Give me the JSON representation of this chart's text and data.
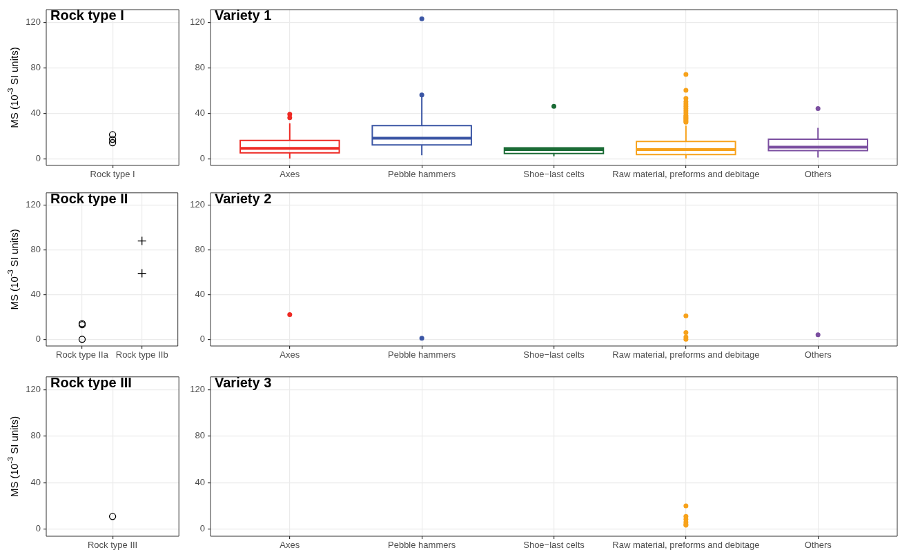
{
  "chart_data": [
    {
      "type": "scatter",
      "title": "Rock type I",
      "ylabel": "MS (10$^{-3}$ SI units)",
      "categories": [
        "Rock type I"
      ],
      "series": [
        {
          "color": "#000000",
          "marker": "circle",
          "x": [
            "Rock type I",
            "Rock type I",
            "Rock type I"
          ],
          "values": [
            21,
            17,
            14
          ]
        }
      ],
      "ylim": [
        -6,
        131
      ],
      "yticks": [
        0,
        40,
        80,
        120
      ],
      "grid": true
    },
    {
      "type": "box",
      "title": "Variety 1",
      "categories": [
        "Axes",
        "Pebble hammers",
        "Shoe−last celts",
        "Raw material, preforms and debitage",
        "Others"
      ],
      "colors": [
        "#ee2a24",
        "#3a55a4",
        "#1a6b35",
        "#f7a21b",
        "#7b4fa0"
      ],
      "boxes": [
        {
          "low": 0,
          "q1": 5,
          "median": 9,
          "q3": 16,
          "high": 31,
          "outliers": [
            36,
            39
          ]
        },
        {
          "low": 3,
          "q1": 12,
          "median": 18,
          "q3": 29,
          "high": 54,
          "outliers": [
            56,
            123
          ]
        },
        {
          "low": 2,
          "q1": 4.5,
          "median": 8,
          "q3": 9.5,
          "high": 9.5,
          "outliers": [
            46
          ]
        },
        {
          "low": 0,
          "q1": 3.5,
          "median": 8,
          "q3": 15,
          "high": 29,
          "outliers": [
            32,
            33,
            34,
            35,
            36,
            37,
            38,
            40,
            42,
            44,
            46,
            48,
            50,
            53,
            60,
            74
          ]
        },
        {
          "low": 1,
          "q1": 7,
          "median": 10,
          "q3": 17,
          "high": 27,
          "outliers": [
            44
          ]
        }
      ],
      "ylim": [
        -6,
        131
      ],
      "yticks": [
        0,
        40,
        80,
        120
      ],
      "grid": true
    },
    {
      "type": "scatter",
      "title": "Rock type II",
      "ylabel": "MS (10$^{-3}$ SI units)",
      "categories": [
        "Rock type IIa",
        "Rock type IIb"
      ],
      "series": [
        {
          "color": "#000000",
          "marker": "circle",
          "x": [
            "Rock type IIa",
            "Rock type IIa",
            "Rock type IIa"
          ],
          "values": [
            14,
            13,
            0
          ]
        },
        {
          "color": "#000000",
          "marker": "cross",
          "x": [
            "Rock type IIb",
            "Rock type IIb"
          ],
          "values": [
            88,
            59
          ]
        }
      ],
      "ylim": [
        -6,
        131
      ],
      "yticks": [
        0,
        40,
        80,
        120
      ],
      "grid": true
    },
    {
      "type": "scatter",
      "title": "Variety 2",
      "categories": [
        "Axes",
        "Pebble hammers",
        "Shoe−last celts",
        "Raw material, preforms and debitage",
        "Others"
      ],
      "series": [
        {
          "color": "#ee2a24",
          "x": [
            "Axes"
          ],
          "values": [
            22
          ]
        },
        {
          "color": "#3a55a4",
          "x": [
            "Pebble hammers"
          ],
          "values": [
            1
          ]
        },
        {
          "color": "#f7a21b",
          "x": [
            "Raw material, preforms and debitage",
            "Raw material, preforms and debitage",
            "Raw material, preforms and debitage",
            "Raw material, preforms and debitage"
          ],
          "values": [
            21,
            6,
            2,
            0
          ]
        },
        {
          "color": "#7b4fa0",
          "x": [
            "Others"
          ],
          "values": [
            4
          ]
        }
      ],
      "ylim": [
        -6,
        131
      ],
      "yticks": [
        0,
        40,
        80,
        120
      ],
      "grid": true
    },
    {
      "type": "scatter",
      "title": "Rock type III",
      "ylabel": "MS (10$^{-3}$ SI units)",
      "categories": [
        "Rock type III"
      ],
      "series": [
        {
          "color": "#000000",
          "marker": "circle",
          "x": [
            "Rock type III"
          ],
          "values": [
            11
          ]
        }
      ],
      "ylim": [
        -6,
        131
      ],
      "yticks": [
        0,
        40,
        80,
        120
      ],
      "grid": true
    },
    {
      "type": "scatter",
      "title": "Variety 3",
      "categories": [
        "Axes",
        "Pebble hammers",
        "Shoe−last celts",
        "Raw material, preforms and debitage",
        "Others"
      ],
      "series": [
        {
          "color": "#f7a21b",
          "x": [
            "Raw material, preforms and debitage",
            "Raw material, preforms and debitage",
            "Raw material, preforms and debitage",
            "Raw material, preforms and debitage",
            "Raw material, preforms and debitage",
            "Raw material, preforms and debitage"
          ],
          "values": [
            20,
            11,
            8.5,
            6,
            4,
            3.5
          ]
        }
      ],
      "ylim": [
        -6,
        131
      ],
      "yticks": [
        0,
        40,
        80,
        120
      ],
      "grid": true
    }
  ]
}
